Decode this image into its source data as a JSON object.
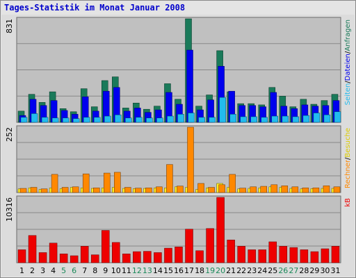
{
  "title": "Tages-Statistik im Monat Januar 2008",
  "chart_data": {
    "type": "bar",
    "categories": [
      "1",
      "2",
      "3",
      "4",
      "5",
      "6",
      "7",
      "8",
      "9",
      "10",
      "11",
      "12",
      "13",
      "14",
      "15",
      "16",
      "17",
      "18",
      "19",
      "20",
      "21",
      "22",
      "23",
      "24",
      "25",
      "26",
      "27",
      "28",
      "29",
      "30",
      "31"
    ],
    "weekend_days": [
      "5",
      "6",
      "12",
      "13",
      "19",
      "20",
      "26",
      "27"
    ],
    "colors": {
      "anfragen": "#1a7a5a",
      "dateien": "#0000ee",
      "seiten": "#22bbee",
      "besuche": "#ffee22",
      "rechner": "#ff8800",
      "kb": "#ee0000",
      "weekday_label": "#000000",
      "weekend_label": "#1a8a5a"
    },
    "panels": [
      {
        "name": "hits",
        "max_label": "831",
        "ylim": [
          0,
          831
        ],
        "side_labels": [
          {
            "text": "Anfragen",
            "color": "#1a7a5a"
          },
          {
            "text": "/",
            "color": "#000000"
          },
          {
            "text": "Dateien",
            "color": "#0000ee"
          },
          {
            "text": "/",
            "color": "#000000"
          },
          {
            "text": "Seiten",
            "color": "#22bbee"
          }
        ],
        "series": [
          {
            "name": "Anfragen",
            "values": [
              90,
              225,
              160,
              245,
              110,
              85,
              270,
              125,
              335,
              365,
              115,
              155,
              105,
              130,
              310,
              185,
              831,
              130,
              220,
              575,
              245,
              150,
              150,
              140,
              280,
              210,
              125,
              185,
              145,
              175,
              225
            ]
          },
          {
            "name": "Dateien",
            "values": [
              55,
              185,
              135,
              175,
              95,
              65,
              205,
              90,
              250,
              280,
              90,
              115,
              80,
              100,
              240,
              145,
              580,
              100,
              180,
              450,
              250,
              135,
              135,
              125,
              240,
              130,
              110,
              140,
              130,
              135,
              175
            ]
          },
          {
            "name": "Seiten",
            "values": [
              40,
              70,
              40,
              35,
              35,
              30,
              40,
              40,
              50,
              60,
              35,
              40,
              35,
              35,
              50,
              65,
              75,
              40,
              40,
              200,
              65,
              45,
              45,
              40,
              50,
              50,
              45,
              55,
              75,
              60,
              85
            ]
          }
        ]
      },
      {
        "name": "visits",
        "max_label": "252",
        "ylim": [
          0,
          252
        ],
        "side_labels": [
          {
            "text": "Besuche",
            "color": "#ddcc00"
          },
          {
            "text": "/",
            "color": "#000000"
          },
          {
            "text": "Rechner",
            "color": "#ff8800"
          }
        ],
        "series": [
          {
            "name": "Besuche",
            "values": [
              14,
              18,
              12,
              18,
              15,
              20,
              18,
              16,
              18,
              20,
              16,
              15,
              16,
              18,
              18,
              22,
              20,
              12,
              18,
              35,
              20,
              14,
              16,
              18,
              22,
              20,
              16,
              14,
              15,
              16,
              16
            ]
          },
          {
            "name": "Rechner",
            "values": [
              16,
              20,
              14,
              70,
              20,
              22,
              72,
              18,
              75,
              78,
              20,
              17,
              18,
              22,
              108,
              25,
              252,
              35,
              20,
              30,
              70,
              17,
              22,
              24,
              30,
              26,
              22,
              18,
              18,
              26,
              22
            ]
          }
        ]
      },
      {
        "name": "kb",
        "max_label": "10316",
        "ylim": [
          0,
          10316
        ],
        "side_labels": [
          {
            "text": "kB",
            "color": "#ee0000"
          }
        ],
        "series": [
          {
            "name": "kB",
            "values": [
              2050,
              4300,
              1600,
              3100,
              1400,
              1100,
              2600,
              1250,
              5100,
              3200,
              1400,
              1750,
              1800,
              1600,
              2300,
              2500,
              5300,
              1900,
              5400,
              10316,
              3600,
              2600,
              2050,
              2050,
              3300,
              2600,
              2400,
              2050,
              1750,
              2200,
              2600
            ]
          }
        ]
      }
    ]
  }
}
